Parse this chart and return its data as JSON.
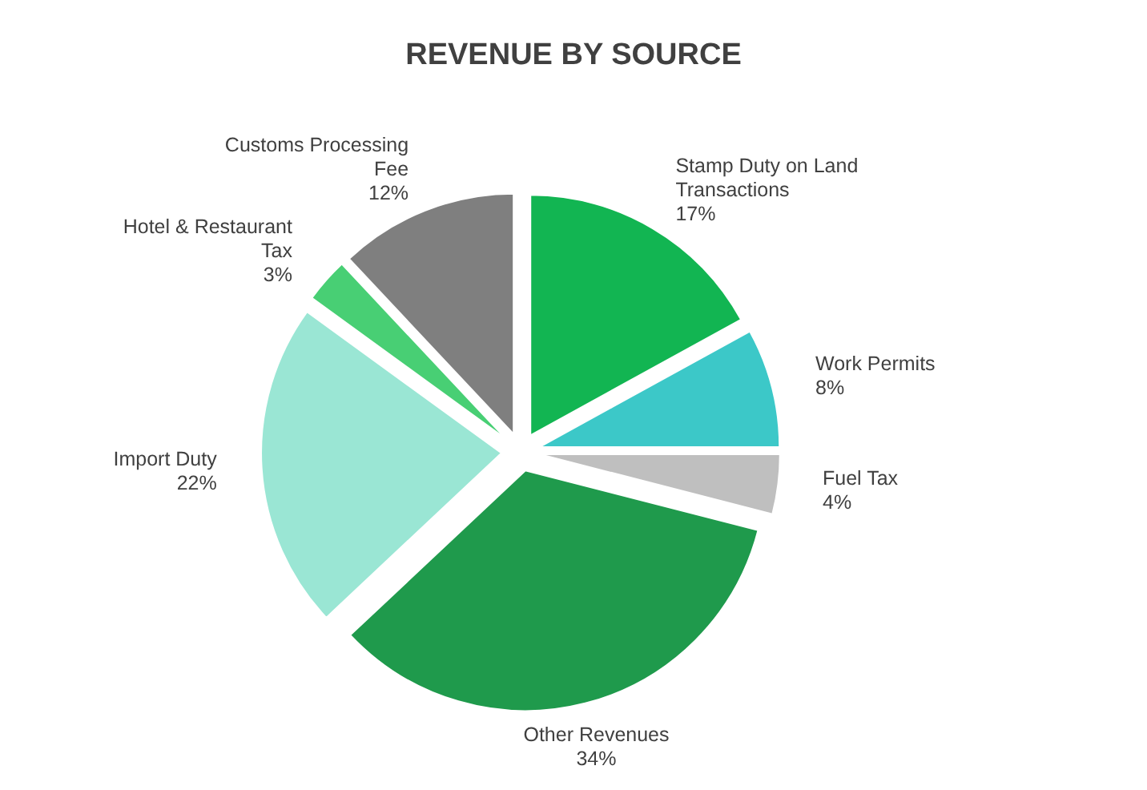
{
  "chart_data": {
    "type": "pie",
    "title": "REVENUE BY SOURCE",
    "categories": [
      "Stamp Duty on Land Transactions",
      "Work Permits",
      "Fuel Tax",
      "Other Revenues",
      "Import Duty",
      "Hotel & Restaurant Tax",
      "Customs Processing Fee"
    ],
    "values": [
      17,
      8,
      4,
      34,
      22,
      3,
      12
    ],
    "value_labels": [
      "17%",
      "8%",
      "4%",
      "34%",
      "22%",
      "3%",
      "12%"
    ],
    "colors": [
      "#12b552",
      "#3cc8c8",
      "#bfbfbf",
      "#1f9a4c",
      "#9ae6d4",
      "#48cf74",
      "#7f7f7f"
    ]
  }
}
